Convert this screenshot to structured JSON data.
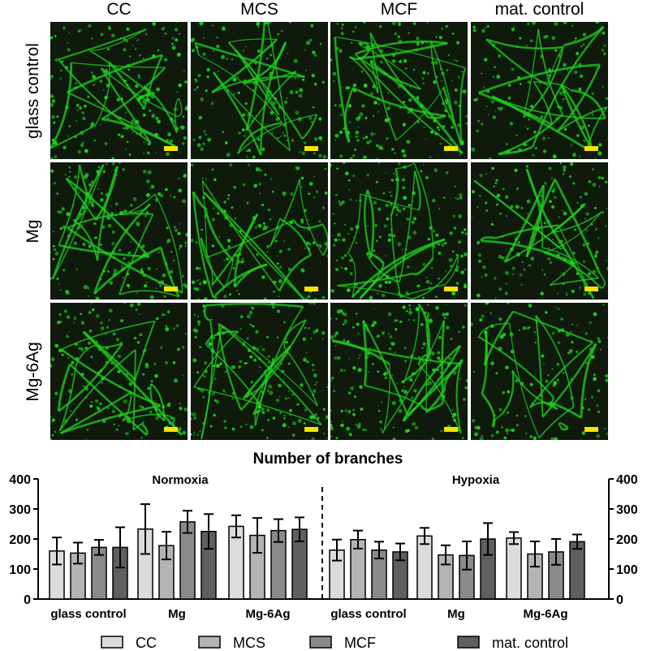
{
  "micrographs": {
    "columns": [
      "CC",
      "MCS",
      "MCF",
      "mat. control"
    ],
    "rows": [
      "glass control",
      "Mg",
      "Mg-6Ag"
    ],
    "scale_bar_color": "#f5e400",
    "fluorescence_color": "#1fd11f"
  },
  "chart_data": {
    "type": "bar",
    "title": "Number of branches",
    "groups": [
      "Normoxia",
      "Hypoxia"
    ],
    "categories": [
      "glass control",
      "Mg",
      "Mg-6Ag",
      "glass control",
      "Mg",
      "Mg-6Ag"
    ],
    "series": [
      {
        "name": "CC",
        "color": "#dcdcdc",
        "values": [
          160,
          233,
          242,
          163,
          210,
          203
        ],
        "errors": [
          45,
          83,
          37,
          35,
          27,
          20
        ]
      },
      {
        "name": "MCS",
        "color": "#b4b4b4",
        "values": [
          153,
          178,
          212,
          198,
          147,
          150
        ],
        "errors": [
          35,
          46,
          58,
          30,
          32,
          42
        ]
      },
      {
        "name": "MCF",
        "color": "#8a8a8a",
        "values": [
          172,
          257,
          228,
          163,
          145,
          157
        ],
        "errors": [
          25,
          37,
          38,
          28,
          47,
          43
        ]
      },
      {
        "name": "mat. control",
        "color": "#5f5f5f",
        "values": [
          172,
          225,
          232,
          157,
          200,
          191
        ],
        "errors": [
          67,
          58,
          40,
          28,
          53,
          24
        ]
      }
    ],
    "ylim": [
      0,
      400
    ],
    "yticks": [
      "0",
      "100",
      "200",
      "300",
      "400"
    ],
    "divider": "dashed line between Normoxia and Hypoxia",
    "legend_position": "bottom"
  }
}
